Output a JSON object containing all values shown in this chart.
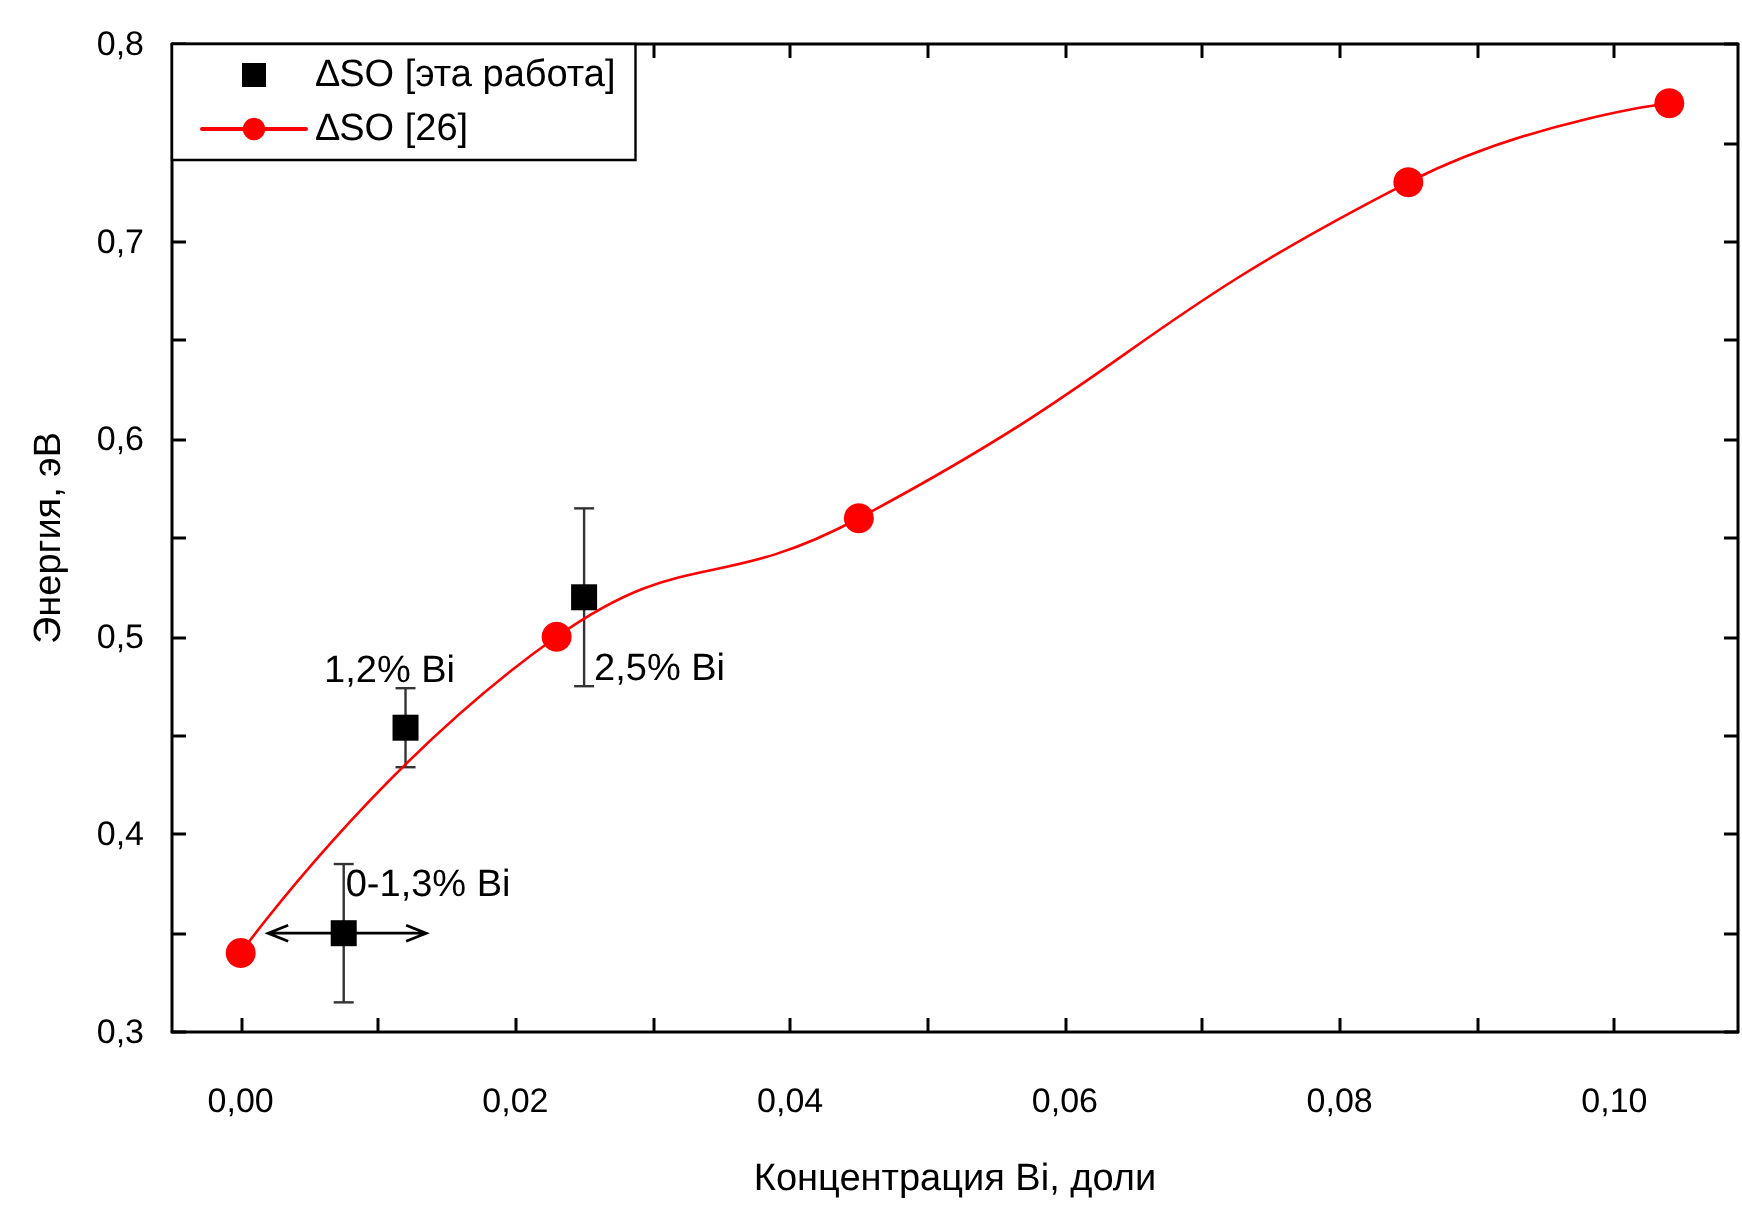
{
  "chart_data": {
    "type": "scatter",
    "xlabel": "Концентрация Bi, доли",
    "ylabel": "Энергия, эВ",
    "xlim": [
      -0.005,
      0.109
    ],
    "ylim": [
      0.3,
      0.8
    ],
    "xticks": [
      {
        "value": 0,
        "label": "0,00"
      },
      {
        "value": 0.01,
        "label": null
      },
      {
        "value": 0.02,
        "label": "0,02"
      },
      {
        "value": 0.03,
        "label": null
      },
      {
        "value": 0.04,
        "label": "0,04"
      },
      {
        "value": 0.05,
        "label": null
      },
      {
        "value": 0.06,
        "label": "0,06"
      },
      {
        "value": 0.07,
        "label": null
      },
      {
        "value": 0.08,
        "label": "0,08"
      },
      {
        "value": 0.09,
        "label": null
      },
      {
        "value": 0.1,
        "label": "0,10"
      }
    ],
    "yticks": [
      {
        "value": 0.3,
        "label": "0,3"
      },
      {
        "value": 0.35,
        "label": null
      },
      {
        "value": 0.4,
        "label": "0,4"
      },
      {
        "value": 0.45,
        "label": null
      },
      {
        "value": 0.5,
        "label": "0,5"
      },
      {
        "value": 0.55,
        "label": null
      },
      {
        "value": 0.6,
        "label": "0,6"
      },
      {
        "value": 0.65,
        "label": null
      },
      {
        "value": 0.7,
        "label": "0,7"
      },
      {
        "value": 0.75,
        "label": null
      },
      {
        "value": 0.8,
        "label": "0,8"
      }
    ],
    "grid": false,
    "legend": "top left",
    "series": [
      {
        "name": "∆SO [эта работа]",
        "marker": "square",
        "color": "#000000",
        "x": [
          0.0075,
          0.012,
          0.025
        ],
        "values": [
          0.35,
          0.454,
          0.52
        ],
        "errors": [
          [
            0.315,
            0.385
          ],
          [
            0.434,
            0.474
          ],
          [
            0.475,
            0.565
          ]
        ],
        "xerrors": [
          [
            0.002,
            0.0135
          ],
          null,
          null
        ]
      },
      {
        "name": "∆SO [26]",
        "type": "line",
        "marker": "circle",
        "line_style": "solid",
        "color": "#ff0000",
        "x": [
          0,
          0.023,
          0.045,
          0.085,
          0.104
        ],
        "values": [
          0.34,
          0.5,
          0.56,
          0.73,
          0.77
        ]
      }
    ],
    "annotations": [
      {
        "text": "0-1,3% Bi",
        "x": 0.0075,
        "y": 0.35
      },
      {
        "text": "1,2% Bi",
        "x": 0.012,
        "y": 0.454
      },
      {
        "text": "2,5% Bi",
        "x": 0.025,
        "y": 0.52
      }
    ]
  }
}
